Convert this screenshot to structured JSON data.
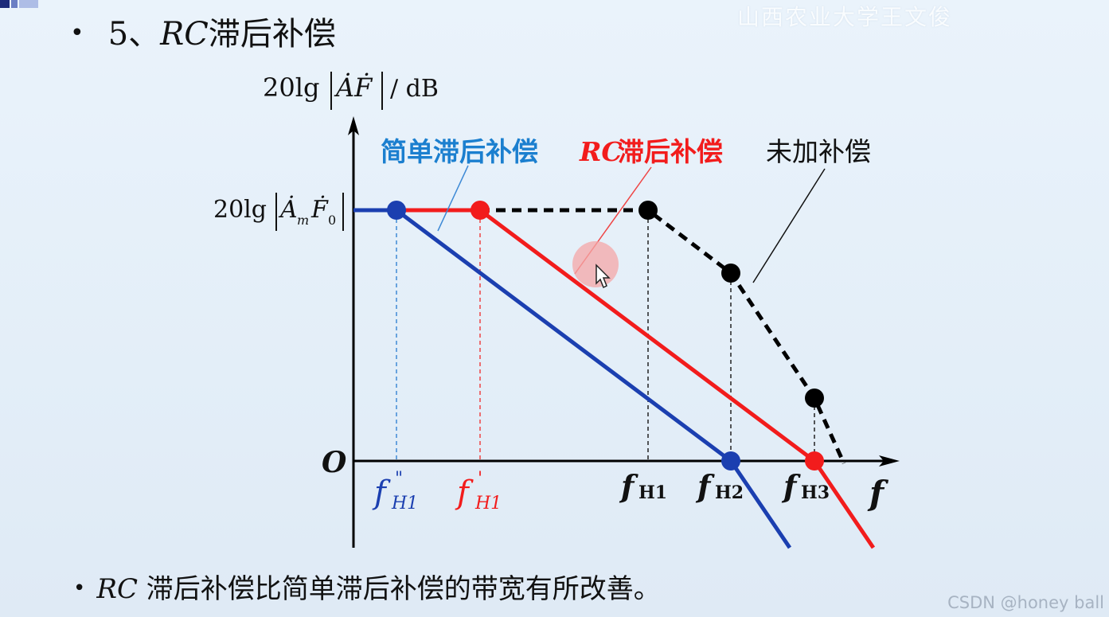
{
  "header": {
    "watermark": "山西农业大学王文俊",
    "bullet": "•",
    "title_number": "5、",
    "title_rc": "RC",
    "title_text": "滞后补偿"
  },
  "diagram": {
    "ylabel_prefix": "20lg",
    "ylabel_expr": "ȦḞ",
    "ylabel_unit": "/ dB",
    "level_prefix": "20lg",
    "level_A": "Ȧ",
    "level_A_sub": "m",
    "level_F": "Ḟ",
    "level_F_sub": "0",
    "origin": "O",
    "x_axis_label": "f",
    "curve_simple_label": "简单滞后补偿",
    "curve_rc_label_rc": "RC",
    "curve_rc_label_text": " 滞后补偿",
    "curve_none_label": "未加补偿",
    "tick_fh1_dd": {
      "f": "f",
      "mark": "\"",
      "sub": "H1"
    },
    "tick_fh1_d": {
      "f": "f",
      "mark": "'",
      "sub": "H1"
    },
    "tick_fH1": {
      "f": "f",
      "sub": "H1"
    },
    "tick_fH2": {
      "f": "f",
      "sub": "H2"
    },
    "tick_fH3": {
      "f": "f",
      "sub": "H3"
    },
    "colors": {
      "simple": "#1b3fb0",
      "rc": "#f21c1c",
      "none": "#000000",
      "axis": "#000000",
      "cursor_halo": "#f4a7a7"
    }
  },
  "footer": {
    "bullet": "•",
    "note_rc": "RC",
    "note_text": " 滞后补偿比简单滞后补偿的带宽有所改善。",
    "credit": "CSDN @honey ball"
  }
}
